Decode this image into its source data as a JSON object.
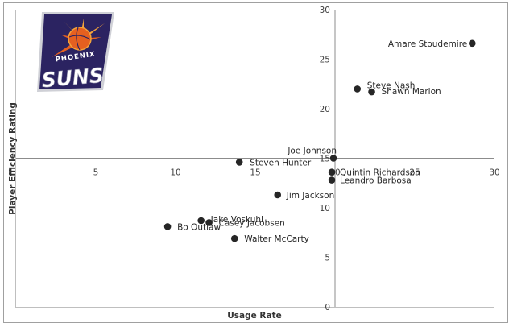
{
  "chart_data": {
    "type": "scatter",
    "title": "",
    "xlabel": "Usage Rate",
    "ylabel": "Player Efficiency Rating",
    "xlim": [
      0,
      30
    ],
    "ylim": [
      0,
      30
    ],
    "axis_cross": {
      "x": 20,
      "y": 15
    },
    "x_ticks": [
      5,
      10,
      15,
      20,
      25,
      30
    ],
    "y_ticks": [
      0,
      5,
      10,
      15,
      20,
      25,
      30
    ],
    "grid": false,
    "legend": "none",
    "marker_color": "#262626",
    "points": [
      {
        "label": "Amare Stoudemire",
        "x": 28.6,
        "y": 26.6
      },
      {
        "label": "Steve Nash",
        "x": 21.4,
        "y": 22.0
      },
      {
        "label": "Shawn Marion",
        "x": 22.3,
        "y": 21.7
      },
      {
        "label": "Joe Johnson",
        "x": 19.9,
        "y": 15.0
      },
      {
        "label": "Steven Hunter",
        "x": 14.0,
        "y": 14.6
      },
      {
        "label": "Quintin Richardson",
        "x": 19.8,
        "y": 13.6
      },
      {
        "label": "Leandro Barbosa",
        "x": 19.8,
        "y": 12.8
      },
      {
        "label": "Jim Jackson",
        "x": 16.4,
        "y": 11.3
      },
      {
        "label": "Jake Voskuhl",
        "x": 11.6,
        "y": 8.7
      },
      {
        "label": "Casey Jacobsen",
        "x": 12.1,
        "y": 8.5
      },
      {
        "label": "Bo Outlaw",
        "x": 9.5,
        "y": 8.1
      },
      {
        "label": "Walter McCarty",
        "x": 13.7,
        "y": 6.9
      }
    ]
  },
  "logo": {
    "top_text": "PHOENIX",
    "main_text": "SUNS",
    "colors": {
      "purple": "#2b2361",
      "orange": "#e56020",
      "gold": "#f3a33b",
      "silver": "#cfd0d6"
    }
  }
}
